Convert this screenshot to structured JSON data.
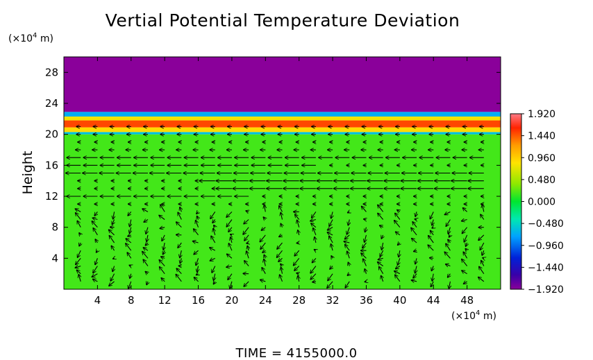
{
  "chart_data": {
    "type": "heatmap",
    "title": "Vertial Potential Temperature Deviation",
    "ylabel": "Height",
    "xlabel": "",
    "x_unit": {
      "pre": "(×10",
      "exp": "4",
      "post": " m)"
    },
    "y_unit": {
      "pre": "(×10",
      "exp": "4",
      "post": " m)"
    },
    "xlim": [
      0,
      52
    ],
    "ylim": [
      0,
      30
    ],
    "x_ticks": [
      4,
      8,
      12,
      16,
      20,
      24,
      28,
      32,
      36,
      40,
      44,
      48
    ],
    "x_tick_labels": [
      "4",
      "8",
      "12",
      "16",
      "20",
      "24",
      "28",
      "32",
      "36",
      "40",
      "44",
      "48"
    ],
    "y_ticks": [
      4,
      8,
      12,
      16,
      20,
      24,
      28
    ],
    "y_tick_labels": [
      "4",
      "8",
      "12",
      "16",
      "20",
      "24",
      "28"
    ],
    "colorbar": {
      "range": [
        -1.92,
        1.92
      ],
      "tick_values": [
        1.92,
        1.44,
        0.96,
        0.48,
        0.0,
        -0.48,
        -0.96,
        -1.44,
        -1.92
      ],
      "tick_labels": [
        "1.920",
        "1.440",
        "0.960",
        "0.480",
        "0.000",
        "−0.480",
        "−0.960",
        "−1.440",
        "−1.920"
      ]
    },
    "field_bands": [
      {
        "z_from": 0.0,
        "z_to": 20.0,
        "value": 0.18
      },
      {
        "z_from": 20.0,
        "z_to": 20.3,
        "value": -0.6
      },
      {
        "z_from": 20.3,
        "z_to": 20.9,
        "value": 0.9
      },
      {
        "z_from": 20.9,
        "z_to": 21.8,
        "value": 1.5
      },
      {
        "z_from": 21.8,
        "z_to": 22.3,
        "value": 0.8
      },
      {
        "z_from": 22.3,
        "z_to": 22.9,
        "value": -0.7
      },
      {
        "z_from": 22.9,
        "z_to": 30.0,
        "value": -1.92
      }
    ],
    "vector_field": {
      "x_start": 2.0,
      "x_step": 2.0,
      "x_count": 25,
      "y_start": 1.0,
      "y_step": 1.0,
      "y_count": 21,
      "jets": [
        {
          "height": 12.0,
          "x_from": 2,
          "x_to": 22,
          "u": -1.6
        },
        {
          "height": 13.0,
          "x_from": 20,
          "x_to": 52,
          "u": -1.8
        },
        {
          "height": 14.0,
          "x_from": 18,
          "x_to": 52,
          "u": -1.8
        },
        {
          "height": 15.0,
          "x_from": 0,
          "x_to": 52,
          "u": -1.7
        },
        {
          "height": 16.0,
          "x_from": 0,
          "x_to": 30,
          "u": -1.6
        },
        {
          "height": 17.0,
          "x_from": 0,
          "x_to": 52,
          "u": -1.6
        },
        {
          "height": 18.0,
          "x_from": 0,
          "x_to": 52,
          "u": -0.6
        }
      ]
    }
  },
  "footer": {
    "time_label": "TIME  =  4155000.0"
  }
}
